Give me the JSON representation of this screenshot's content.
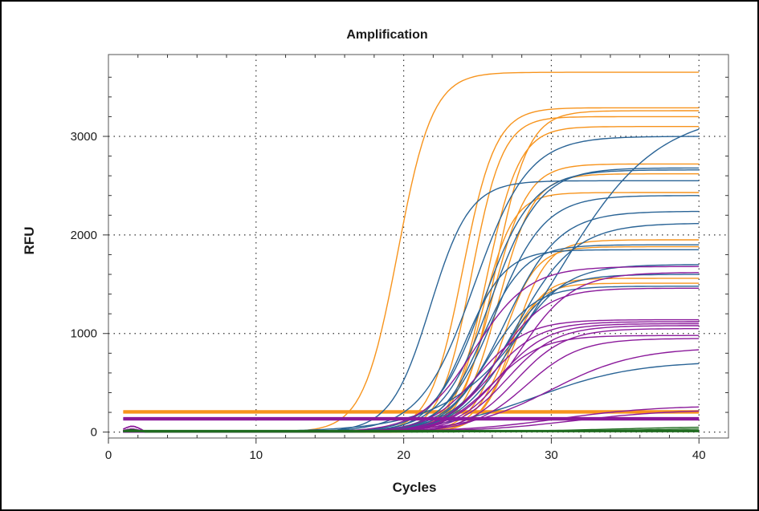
{
  "chart_data": {
    "type": "line",
    "title": "Amplification",
    "xlabel": "Cycles",
    "ylabel": "RFU",
    "xlim": [
      0,
      42
    ],
    "ylim": [
      -60,
      3830
    ],
    "x_ticks": [
      0,
      10,
      20,
      30,
      40
    ],
    "y_ticks": [
      0,
      1000,
      2000,
      3000
    ],
    "grid": "dotted",
    "legend": "none",
    "x_range": [
      1,
      40
    ],
    "colors": {
      "orange": "#f7941d",
      "blue": "#2a6496",
      "purple": "#8b1a9b",
      "green": "#1f6b1f",
      "grid": "#333333",
      "axis": "#555555"
    },
    "series": [
      {
        "group": "orange",
        "shape": "sigmoid",
        "plateau": 3650,
        "midpoint": 19.6,
        "slope": 0.85
      },
      {
        "group": "orange",
        "shape": "sigmoid",
        "plateau": 3290,
        "midpoint": 24.0,
        "slope": 0.9
      },
      {
        "group": "orange",
        "shape": "sigmoid",
        "plateau": 3260,
        "midpoint": 26.2,
        "slope": 0.9
      },
      {
        "group": "orange",
        "shape": "sigmoid",
        "plateau": 3200,
        "midpoint": 24.6,
        "slope": 0.95
      },
      {
        "group": "orange",
        "shape": "sigmoid",
        "plateau": 3100,
        "midpoint": 25.6,
        "slope": 0.9
      },
      {
        "group": "orange",
        "shape": "sigmoid",
        "plateau": 2720,
        "midpoint": 26.0,
        "slope": 0.85
      },
      {
        "group": "orange",
        "shape": "sigmoid",
        "plateau": 2620,
        "midpoint": 26.4,
        "slope": 0.85
      },
      {
        "group": "orange",
        "shape": "sigmoid",
        "plateau": 2430,
        "midpoint": 25.3,
        "slope": 0.95
      },
      {
        "group": "orange",
        "shape": "sigmoid",
        "plateau": 1950,
        "midpoint": 27.5,
        "slope": 0.9
      },
      {
        "group": "orange",
        "shape": "sigmoid",
        "plateau": 1880,
        "midpoint": 26.7,
        "slope": 0.9
      },
      {
        "group": "orange",
        "shape": "sigmoid",
        "plateau": 1560,
        "midpoint": 27.2,
        "slope": 0.95
      },
      {
        "group": "orange",
        "shape": "sigmoid",
        "plateau": 1510,
        "midpoint": 26.8,
        "slope": 0.9
      },
      {
        "group": "orange",
        "shape": "flat",
        "value": 200
      },
      {
        "group": "orange",
        "shape": "flat",
        "value": 210
      },
      {
        "group": "blue",
        "shape": "sigmoid",
        "plateau": 3250,
        "midpoint": 30.5,
        "slope": 0.3
      },
      {
        "group": "blue",
        "shape": "sigmoid",
        "plateau": 3000,
        "midpoint": 24.8,
        "slope": 0.55
      },
      {
        "group": "blue",
        "shape": "sigmoid",
        "plateau": 2660,
        "midpoint": 25.4,
        "slope": 0.6
      },
      {
        "group": "blue",
        "shape": "sigmoid",
        "plateau": 2550,
        "midpoint": 21.8,
        "slope": 0.75
      },
      {
        "group": "blue",
        "shape": "sigmoid",
        "plateau": 2680,
        "midpoint": 25.9,
        "slope": 0.6
      },
      {
        "group": "blue",
        "shape": "sigmoid",
        "plateau": 2400,
        "midpoint": 26.2,
        "slope": 0.6
      },
      {
        "group": "blue",
        "shape": "sigmoid",
        "plateau": 2240,
        "midpoint": 26.9,
        "slope": 0.55
      },
      {
        "group": "blue",
        "shape": "sigmoid",
        "plateau": 2120,
        "midpoint": 27.6,
        "slope": 0.5
      },
      {
        "group": "blue",
        "shape": "sigmoid",
        "plateau": 1900,
        "midpoint": 25.3,
        "slope": 0.7
      },
      {
        "group": "blue",
        "shape": "sigmoid",
        "plateau": 1850,
        "midpoint": 24.2,
        "slope": 0.75
      },
      {
        "group": "blue",
        "shape": "sigmoid",
        "plateau": 1700,
        "midpoint": 27.2,
        "slope": 0.55
      },
      {
        "group": "blue",
        "shape": "sigmoid",
        "plateau": 1600,
        "midpoint": 26.6,
        "slope": 0.6
      },
      {
        "group": "blue",
        "shape": "sigmoid",
        "plateau": 1480,
        "midpoint": 25.7,
        "slope": 0.65
      },
      {
        "group": "blue",
        "shape": "sigmoid",
        "plateau": 720,
        "midpoint": 29.0,
        "slope": 0.3
      },
      {
        "group": "purple",
        "shape": "sigmoid",
        "plateau": 1680,
        "midpoint": 24.8,
        "slope": 0.55
      },
      {
        "group": "purple",
        "shape": "sigmoid",
        "plateau": 1620,
        "midpoint": 27.8,
        "slope": 0.55
      },
      {
        "group": "purple",
        "shape": "sigmoid",
        "plateau": 1460,
        "midpoint": 26.3,
        "slope": 0.6
      },
      {
        "group": "purple",
        "shape": "sigmoid",
        "plateau": 1140,
        "midpoint": 25.0,
        "slope": 0.6
      },
      {
        "group": "purple",
        "shape": "sigmoid",
        "plateau": 1120,
        "midpoint": 25.8,
        "slope": 0.6
      },
      {
        "group": "purple",
        "shape": "sigmoid",
        "plateau": 1100,
        "midpoint": 26.4,
        "slope": 0.6
      },
      {
        "group": "purple",
        "shape": "sigmoid",
        "plateau": 1080,
        "midpoint": 27.0,
        "slope": 0.6
      },
      {
        "group": "purple",
        "shape": "sigmoid",
        "plateau": 1050,
        "midpoint": 27.6,
        "slope": 0.6
      },
      {
        "group": "purple",
        "shape": "sigmoid",
        "plateau": 980,
        "midpoint": 26.0,
        "slope": 0.6
      },
      {
        "group": "purple",
        "shape": "sigmoid",
        "plateau": 950,
        "midpoint": 28.3,
        "slope": 0.55
      },
      {
        "group": "purple",
        "shape": "sigmoid",
        "plateau": 860,
        "midpoint": 30.0,
        "slope": 0.35
      },
      {
        "group": "purple",
        "shape": "sigmoid",
        "plateau": 270,
        "midpoint": 30.5,
        "slope": 0.3
      },
      {
        "group": "purple",
        "shape": "sigmoid",
        "plateau": 230,
        "midpoint": 31.5,
        "slope": 0.3
      },
      {
        "group": "purple",
        "shape": "flat",
        "value": 130
      },
      {
        "group": "purple",
        "shape": "flat",
        "value": 140
      },
      {
        "group": "green",
        "shape": "sigmoid",
        "plateau": 60,
        "midpoint": 34.0,
        "slope": 0.25
      },
      {
        "group": "green",
        "shape": "sigmoid",
        "plateau": 40,
        "midpoint": 35.0,
        "slope": 0.25
      },
      {
        "group": "green",
        "shape": "flat",
        "value": 10
      }
    ]
  }
}
